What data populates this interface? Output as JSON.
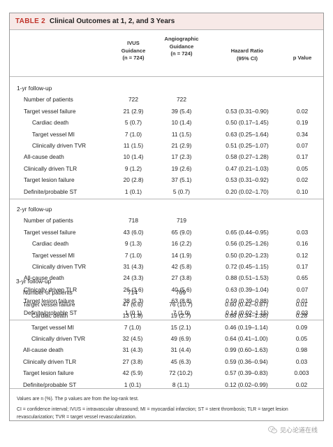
{
  "table": {
    "number": "TABLE 2",
    "title": "Clinical Outcomes at 1, 2, and 3 Years",
    "columns": {
      "ivus": [
        "IVUS",
        "Guidance",
        "(n = 724)"
      ],
      "angio": [
        "Angiographic",
        "Guidance",
        "(n = 724)"
      ],
      "hr": [
        "Hazard Ratio",
        "(95% CI)"
      ],
      "p": [
        "p Value"
      ]
    },
    "sections": [
      {
        "title": "1-yr follow-up",
        "rows": [
          {
            "level": 1,
            "label": "Number of patients",
            "ivus": "722",
            "angio": "722",
            "hr": "",
            "p": ""
          },
          {
            "level": 1,
            "label": "Target vessel failure",
            "ivus": "21 (2.9)",
            "angio": "39 (5.4)",
            "hr": "0.53 (0.31–0.90)",
            "p": "0.02"
          },
          {
            "level": 2,
            "label": "Cardiac death",
            "ivus": "5 (0.7)",
            "angio": "10 (1.4)",
            "hr": "0.50 (0.17–1.45)",
            "p": "0.19"
          },
          {
            "level": 2,
            "label": "Target vessel MI",
            "ivus": "7 (1.0)",
            "angio": "11 (1.5)",
            "hr": "0.63 (0.25–1.64)",
            "p": "0.34"
          },
          {
            "level": 2,
            "label": "Clinically driven TVR",
            "ivus": "11 (1.5)",
            "angio": "21 (2.9)",
            "hr": "0.51 (0.25–1.07)",
            "p": "0.07"
          },
          {
            "level": 1,
            "label": "All-cause death",
            "ivus": "10 (1.4)",
            "angio": "17 (2.3)",
            "hr": "0.58 (0.27–1.28)",
            "p": "0.17"
          },
          {
            "level": 1,
            "label": "Clinically driven TLR",
            "ivus": "9 (1.2)",
            "angio": "19 (2.6)",
            "hr": "0.47 (0.21–1.03)",
            "p": "0.05"
          },
          {
            "level": 1,
            "label": "Target lesion failure",
            "ivus": "20 (2.8)",
            "angio": "37 (5.1)",
            "hr": "0.53 (0.31–0.92)",
            "p": "0.02"
          },
          {
            "level": 1,
            "label": "Definite/probable ST",
            "ivus": "1 (0.1)",
            "angio": "5 (0.7)",
            "hr": "0.20 (0.02–1.70)",
            "p": "0.10"
          }
        ]
      },
      {
        "title": "2-yr follow-up",
        "rows": [
          {
            "level": 1,
            "label": "Number of patients",
            "ivus": "718",
            "angio": "719",
            "hr": "",
            "p": ""
          },
          {
            "level": 1,
            "label": "Target vessel failure",
            "ivus": "43 (6.0)",
            "angio": "65 (9.0)",
            "hr": "0.65 (0.44–0.95)",
            "p": "0.03"
          },
          {
            "level": 2,
            "label": "Cardiac death",
            "ivus": "9 (1.3)",
            "angio": "16 (2.2)",
            "hr": "0.56 (0.25–1.26)",
            "p": "0.16"
          },
          {
            "level": 2,
            "label": "Target vessel MI",
            "ivus": "7 (1.0)",
            "angio": "14 (1.9)",
            "hr": "0.50 (0.20–1.23)",
            "p": "0.12"
          },
          {
            "level": 2,
            "label": "Clinically driven TVR",
            "ivus": "31 (4.3)",
            "angio": "42 (5.8)",
            "hr": "0.72 (0.45–1.15)",
            "p": "0.17"
          },
          {
            "level": 1,
            "label": "All-cause death",
            "ivus": "24 (3.3)",
            "angio": "27 (3.8)",
            "hr": "0.88 (0.51–1.53)",
            "p": "0.65"
          },
          {
            "level": 1,
            "label": "Clinically driven TLR",
            "ivus": "26 (3.6)",
            "angio": "40 (5.6)",
            "hr": "0.63 (0.39–1.04)",
            "p": "0.07"
          },
          {
            "level": 1,
            "label": "Target lesion failure",
            "ivus": "38 (5.3)",
            "angio": "63 (8.8)",
            "hr": "0.59 (0.39–0.88)",
            "p": "0.01"
          },
          {
            "level": 1,
            "label": "Definite/probable ST",
            "ivus": "1 (0.1)",
            "angio": "7 (1.0)",
            "hr": "0.14 (0.02–1.15)",
            "p": "0.03"
          }
        ]
      },
      {
        "title": "3-yr follow-up",
        "rows": [
          {
            "level": 1,
            "label": "Number of patients",
            "ivus": "714",
            "angio": "709",
            "hr": "",
            "p": ""
          },
          {
            "level": 1,
            "label": "Target vessel failure",
            "ivus": "47 (6.6)",
            "angio": "76 (10.7)",
            "hr": "0.60 (0.42–0.87)",
            "p": "0.01"
          },
          {
            "level": 2,
            "label": "Cardiac death",
            "ivus": "13 (1.8)",
            "angio": "19 (2.7)",
            "hr": "0.68 (0.34–1.38)",
            "p": "0.28"
          },
          {
            "level": 2,
            "label": "Target vessel MI",
            "ivus": "7 (1.0)",
            "angio": "15 (2.1)",
            "hr": "0.46 (0.19–1.14)",
            "p": "0.09"
          },
          {
            "level": 2,
            "label": "Clinically driven TVR",
            "ivus": "32 (4.5)",
            "angio": "49 (6.9)",
            "hr": "0.64 (0.41–1.00)",
            "p": "0.05"
          },
          {
            "level": 1,
            "label": "All-cause death",
            "ivus": "31 (4.3)",
            "angio": "31 (4.4)",
            "hr": "0.99 (0.60–1.63)",
            "p": "0.98"
          },
          {
            "level": 1,
            "label": "Clinically driven TLR",
            "ivus": "27 (3.8)",
            "angio": "45 (6.3)",
            "hr": "0.59 (0.36–0.94)",
            "p": "0.03"
          },
          {
            "level": 1,
            "label": "Target lesion failure",
            "ivus": "42 (5.9)",
            "angio": "72 (10.2)",
            "hr": "0.57 (0.39–0.83)",
            "p": "0.003"
          },
          {
            "level": 1,
            "label": "Definite/probable ST",
            "ivus": "1 (0.1)",
            "angio": "8 (1.1)",
            "hr": "0.12 (0.02–0.99)",
            "p": "0.02"
          }
        ]
      }
    ],
    "footnotes": [
      "Values are n (%). The p values are from the log-rank test.",
      "CI = confidence interval; IVUS = intravascular ultrasound; MI = myocardial infarction; ST = stent thrombosis; TLR = target lesion revascularization; TVR = target vessel revascularization."
    ]
  },
  "watermark": {
    "text": "见心论道在线",
    "icon": "wechat-icon",
    "color": "#9a9a9a"
  },
  "colors": {
    "accent": "#c0352b",
    "header_bg": "#f7e9e7",
    "rule": "#b8b8b8"
  }
}
